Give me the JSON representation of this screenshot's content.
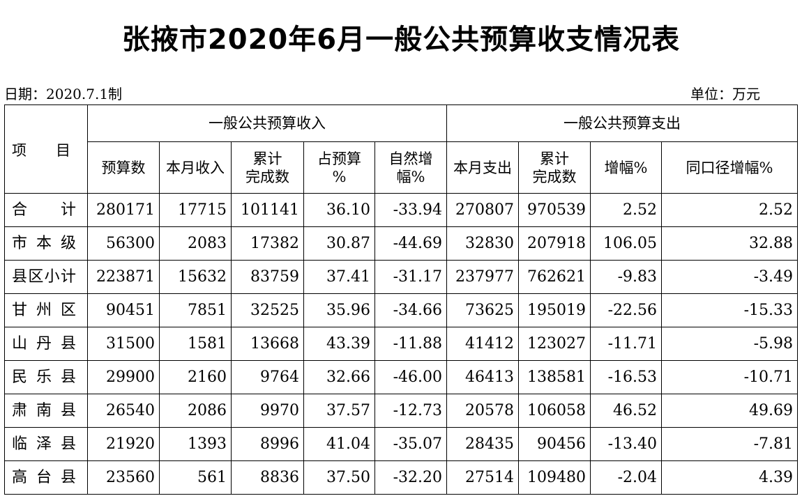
{
  "title": "张掖市2020年6月一般公共预算收支情况表",
  "date_label": "日期：2020.7.1制",
  "unit_label": "单位：万元",
  "header": {
    "item": "项　　目",
    "revenue_group": "一般公共预算收入",
    "expenditure_group": "一般公共预算支出",
    "columns": [
      {
        "line1": "预算数",
        "line2": ""
      },
      {
        "line1": "本月收入",
        "line2": ""
      },
      {
        "line1": "累计",
        "line2": "完成数"
      },
      {
        "line1": "占预算",
        "line2": "%"
      },
      {
        "line1": "自然增",
        "line2": "幅%"
      },
      {
        "line1": "本月支出",
        "line2": ""
      },
      {
        "line1": "累计",
        "line2": "完成数"
      },
      {
        "line1": "增幅%",
        "line2": ""
      },
      {
        "line1": "同口径增幅%",
        "line2": ""
      }
    ]
  },
  "rows": [
    {
      "name": "合计",
      "values": [
        "280171",
        "17715",
        "101141",
        "36.10",
        "-33.94",
        "270807",
        "970539",
        "2.52",
        "2.52"
      ]
    },
    {
      "name": "市本级",
      "values": [
        "56300",
        "2083",
        "17382",
        "30.87",
        "-44.69",
        "32830",
        "207918",
        "106.05",
        "32.88"
      ]
    },
    {
      "name": "县区小计",
      "values": [
        "223871",
        "15632",
        "83759",
        "37.41",
        "-31.17",
        "237977",
        "762621",
        "-9.83",
        "-3.49"
      ]
    },
    {
      "name": "甘州区",
      "values": [
        "90451",
        "7851",
        "32525",
        "35.96",
        "-34.66",
        "73625",
        "195019",
        "-22.56",
        "-15.33"
      ]
    },
    {
      "name": "山丹县",
      "values": [
        "31500",
        "1581",
        "13668",
        "43.39",
        "-11.88",
        "41412",
        "123027",
        "-11.71",
        "-5.98"
      ]
    },
    {
      "name": "民乐县",
      "values": [
        "29900",
        "2160",
        "9764",
        "32.66",
        "-46.00",
        "46413",
        "138581",
        "-16.53",
        "-10.71"
      ]
    },
    {
      "name": "肃南县",
      "values": [
        "26540",
        "2086",
        "9970",
        "37.57",
        "-12.73",
        "20578",
        "106058",
        "46.52",
        "49.69"
      ]
    },
    {
      "name": "临泽县",
      "values": [
        "21920",
        "1393",
        "8996",
        "41.04",
        "-35.07",
        "28435",
        "90456",
        "-13.40",
        "-7.81"
      ]
    },
    {
      "name": "高台县",
      "values": [
        "23560",
        "561",
        "8836",
        "37.50",
        "-32.20",
        "27514",
        "109480",
        "-2.04",
        "4.39"
      ]
    }
  ]
}
